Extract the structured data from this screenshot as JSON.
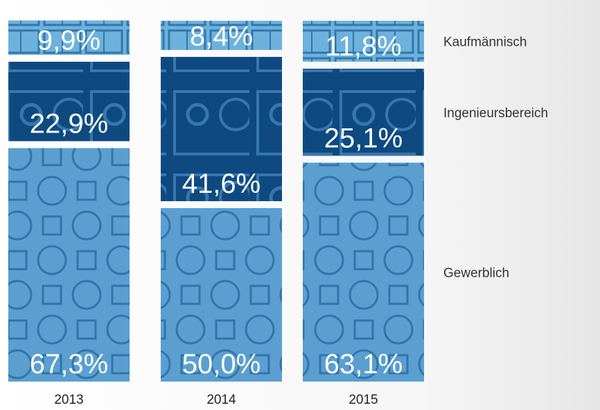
{
  "chart_data": {
    "type": "stacked-bar",
    "categories": [
      "2013",
      "2014",
      "2015"
    ],
    "series": [
      {
        "name": "Gewerblich",
        "color": "#5a9fd0",
        "values": [
          67.3,
          50.0,
          63.1
        ],
        "value_labels": [
          "67,3%",
          "50,0%",
          "63,1%"
        ]
      },
      {
        "name": "Ingenieursbereich",
        "color": "#0e4a80",
        "values": [
          22.9,
          41.6,
          25.1
        ],
        "value_labels": [
          "22,9%",
          "41,6%",
          "25,1%"
        ]
      },
      {
        "name": "Kaufmännisch",
        "color": "#6db2dc",
        "values": [
          9.9,
          8.4,
          11.8
        ],
        "value_labels": [
          "9,9%",
          "8,4%",
          "11,8%"
        ]
      }
    ]
  }
}
